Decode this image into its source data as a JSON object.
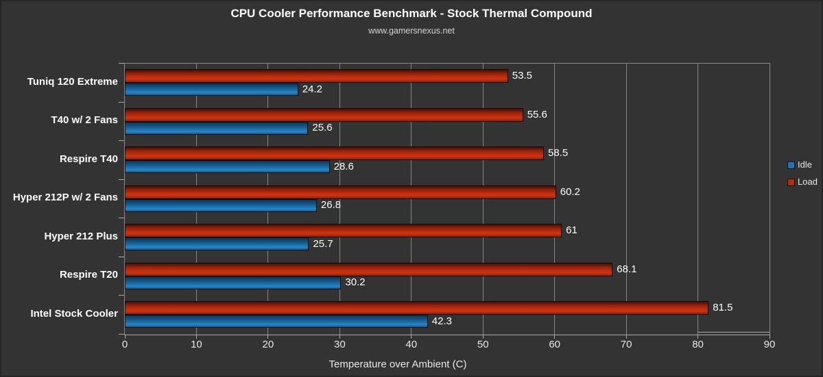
{
  "page": {
    "title": "CPU Cooler Performance Benchmark - Stock Thermal Compound",
    "subtitle": "www.gamersnexus.net"
  },
  "legend": {
    "position": "right",
    "items": [
      {
        "label": "Idle",
        "color": "#1e76b8"
      },
      {
        "label": "Load",
        "color": "#b82b0b"
      }
    ]
  },
  "chart_data": {
    "type": "bar",
    "orientation": "horizontal",
    "title": "CPU Cooler Performance Benchmark - Stock Thermal Compound",
    "subtitle": "www.gamersnexus.net",
    "xlabel": "Temperature over Ambient (C)",
    "ylabel": "",
    "xlim": [
      0,
      90
    ],
    "xticks": [
      0,
      10,
      20,
      30,
      40,
      50,
      60,
      70,
      80,
      90
    ],
    "grid": true,
    "legend_position": "right",
    "categories": [
      "Tuniq 120 Extreme",
      "T40 w/ 2 Fans",
      "Respire T40",
      "Hyper 212P w/ 2 Fans",
      "Hyper 212 Plus",
      "Respire T20",
      "Intel Stock Cooler"
    ],
    "series": [
      {
        "name": "Load",
        "color": "#b82b0b",
        "values": [
          53.5,
          55.6,
          58.5,
          60.2,
          61,
          68.1,
          81.5
        ]
      },
      {
        "name": "Idle",
        "color": "#1e76b8",
        "values": [
          24.2,
          25.6,
          28.6,
          26.8,
          25.7,
          30.2,
          42.3
        ]
      }
    ]
  },
  "colors": {
    "background": "#333333",
    "border": "#262626",
    "gridline": "#868686",
    "axis": "#ababab",
    "load_red": "#b82b0b",
    "idle_blue": "#1e76b8"
  }
}
